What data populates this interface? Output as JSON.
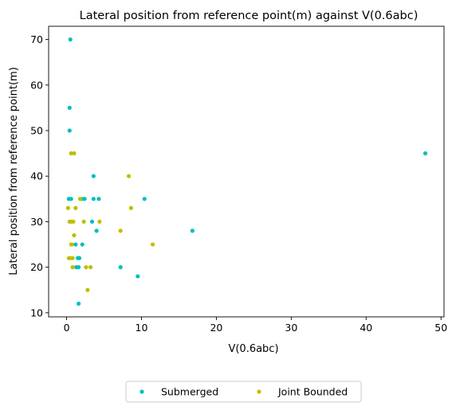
{
  "chart_data": {
    "type": "scatter",
    "title": "Lateral position from reference point(m) against V(0.6abc)",
    "xlabel": "V(0.6abc)",
    "ylabel": "Lateral position from reference point(m)",
    "xlim": [
      -2.4,
      50.4
    ],
    "ylim": [
      9.1,
      72.9
    ],
    "xticks": [
      0,
      10,
      20,
      30,
      40,
      50
    ],
    "yticks": [
      10,
      20,
      30,
      40,
      50,
      60,
      70
    ],
    "grid": false,
    "legend_position": "bottom-center",
    "series": [
      {
        "name": "Submerged",
        "color": "#00bfbf",
        "points": [
          [
            0.5,
            70
          ],
          [
            0.4,
            55
          ],
          [
            0.4,
            50
          ],
          [
            0.3,
            35
          ],
          [
            0.6,
            35
          ],
          [
            2.0,
            35
          ],
          [
            2.4,
            35
          ],
          [
            3.6,
            35
          ],
          [
            4.3,
            35
          ],
          [
            3.6,
            40
          ],
          [
            3.4,
            30
          ],
          [
            4.0,
            28
          ],
          [
            1.2,
            25
          ],
          [
            1.5,
            22
          ],
          [
            1.7,
            22
          ],
          [
            2.1,
            25
          ],
          [
            1.3,
            20
          ],
          [
            1.6,
            20
          ],
          [
            1.6,
            12
          ],
          [
            7.2,
            20
          ],
          [
            9.5,
            18
          ],
          [
            10.4,
            35
          ],
          [
            16.8,
            28
          ],
          [
            47.9,
            45
          ]
        ]
      },
      {
        "name": "Joint Bounded",
        "color": "#bfbf00",
        "points": [
          [
            0.6,
            45
          ],
          [
            1.0,
            45
          ],
          [
            0.2,
            33
          ],
          [
            1.2,
            33
          ],
          [
            0.4,
            30
          ],
          [
            0.9,
            30
          ],
          [
            0.6,
            30
          ],
          [
            1.8,
            35
          ],
          [
            2.3,
            30
          ],
          [
            1.0,
            27
          ],
          [
            0.3,
            22
          ],
          [
            0.5,
            22
          ],
          [
            0.8,
            22
          ],
          [
            0.6,
            25
          ],
          [
            0.7,
            25
          ],
          [
            0.8,
            20
          ],
          [
            2.6,
            20
          ],
          [
            3.2,
            20
          ],
          [
            2.8,
            15
          ],
          [
            4.4,
            30
          ],
          [
            7.2,
            28
          ],
          [
            8.3,
            40
          ],
          [
            8.6,
            33
          ],
          [
            11.5,
            25
          ]
        ]
      }
    ]
  }
}
